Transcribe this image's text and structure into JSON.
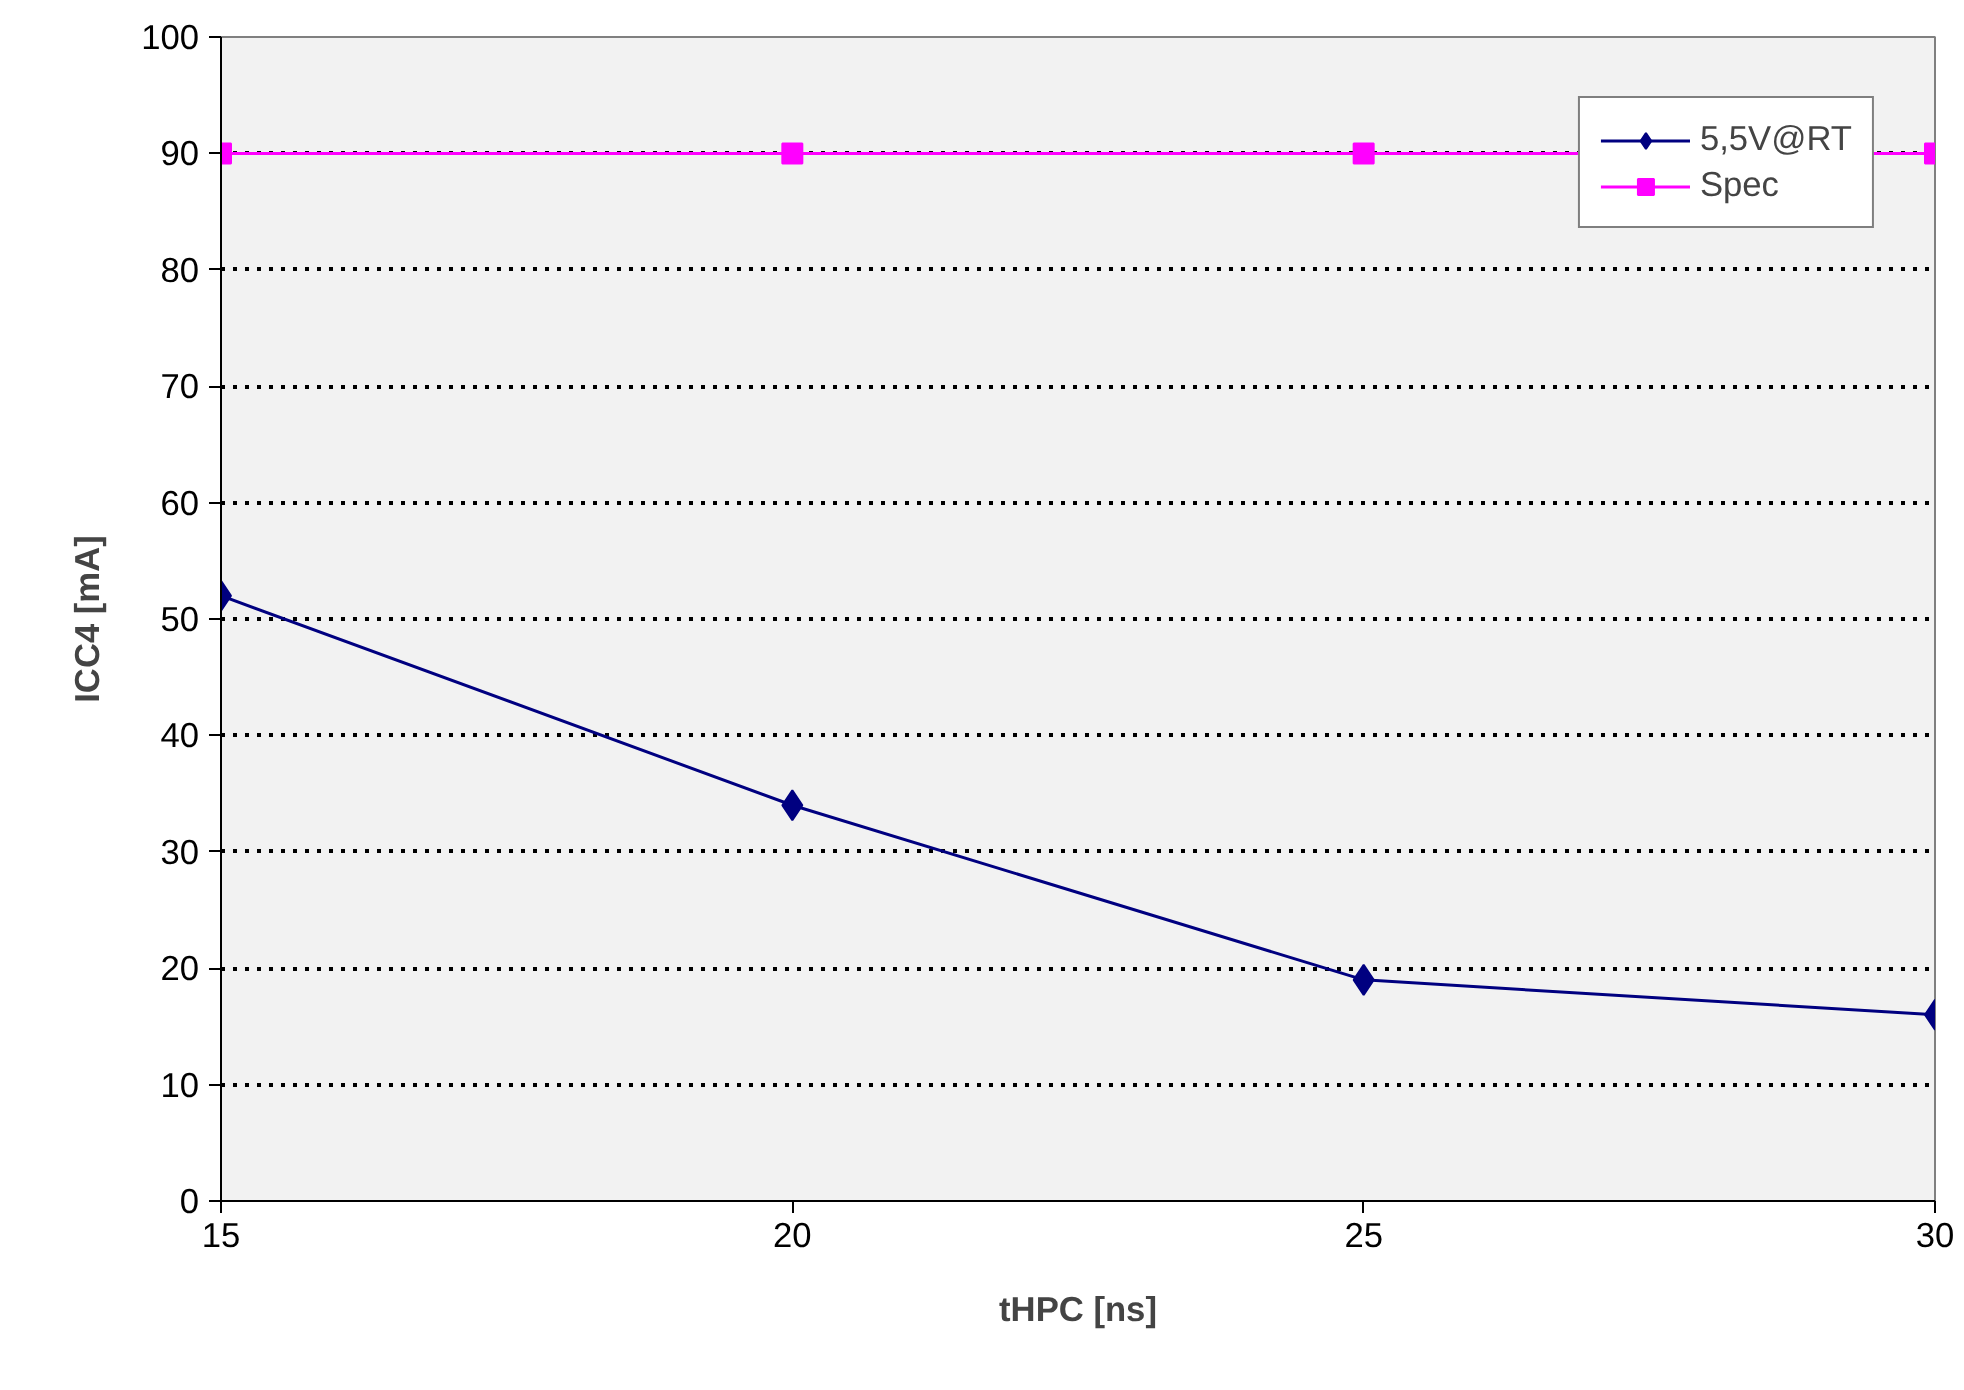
{
  "chart_data": {
    "type": "line",
    "xlabel": "tHPC [ns]",
    "ylabel": "ICC4 [mA]",
    "x": [
      15,
      20,
      25,
      30
    ],
    "series": [
      {
        "name": "5,5V@RT",
        "color": "#000080",
        "values": [
          52,
          34,
          19,
          16
        ],
        "marker": "diamond"
      },
      {
        "name": "Spec",
        "color": "#ff00ff",
        "values": [
          90,
          90,
          90,
          90
        ],
        "marker": "square"
      }
    ],
    "xlim": [
      15,
      30
    ],
    "xticks": [
      15,
      20,
      25,
      30
    ],
    "ylim": [
      0,
      100
    ],
    "yticks": [
      0,
      10,
      20,
      30,
      40,
      50,
      60,
      70,
      80,
      90,
      100
    ],
    "grid": "y",
    "legend": "top right"
  }
}
